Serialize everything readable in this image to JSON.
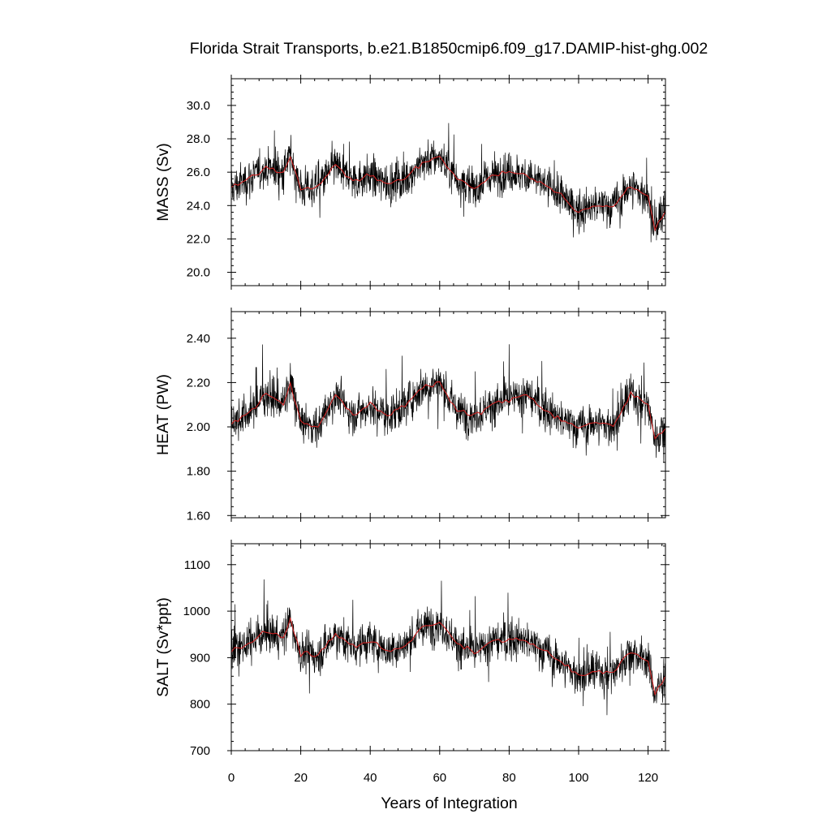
{
  "title": "Florida Strait Transports, b.e21.B1850cmip6.f09_g17.DAMIP-hist-ghg.002",
  "chart_data": [
    {
      "type": "line",
      "ylabel": "MASS (Sv)",
      "xlabel": "",
      "xlim": [
        0,
        125
      ],
      "ylim": [
        19.2,
        31.6
      ],
      "yticks": [
        20.0,
        22.0,
        24.0,
        26.0,
        28.0,
        30.0
      ],
      "ytick_labels": [
        "20.0",
        "22.0",
        "24.0",
        "26.0",
        "28.0",
        "30.0"
      ],
      "xticks": [
        0,
        20,
        40,
        60,
        80,
        100,
        120
      ],
      "grid": false,
      "series": [
        {
          "color": "#000000",
          "resolution": "monthly",
          "x": [
            0,
            5,
            10,
            15,
            17,
            20,
            25,
            30,
            35,
            40,
            45,
            50,
            55,
            60,
            65,
            70,
            75,
            80,
            85,
            90,
            95,
            100,
            105,
            110,
            115,
            120,
            122,
            125
          ],
          "y": [
            25.0,
            25.6,
            26.3,
            26.0,
            27.0,
            25.0,
            25.2,
            26.4,
            25.5,
            25.8,
            25.3,
            25.6,
            26.6,
            26.9,
            25.6,
            25.0,
            25.8,
            26.0,
            25.8,
            25.3,
            24.6,
            23.6,
            24.0,
            24.0,
            25.2,
            24.5,
            22.5,
            23.8
          ]
        },
        {
          "color": "#cc2222",
          "resolution": "annual mean",
          "x": [
            0,
            5,
            10,
            15,
            17,
            20,
            25,
            30,
            35,
            40,
            45,
            50,
            55,
            60,
            65,
            70,
            75,
            80,
            85,
            90,
            95,
            100,
            105,
            110,
            115,
            120,
            122,
            125
          ],
          "y": [
            25.0,
            25.6,
            26.3,
            26.0,
            27.0,
            25.0,
            25.2,
            26.4,
            25.5,
            25.8,
            25.3,
            25.6,
            26.6,
            26.9,
            25.6,
            25.0,
            25.8,
            26.0,
            25.8,
            25.3,
            24.6,
            23.6,
            24.0,
            24.0,
            25.2,
            24.5,
            22.5,
            23.8
          ]
        }
      ]
    },
    {
      "type": "line",
      "ylabel": "HEAT (PW)",
      "xlabel": "",
      "xlim": [
        0,
        125
      ],
      "ylim": [
        1.59,
        2.52
      ],
      "yticks": [
        1.6,
        1.8,
        2.0,
        2.2,
        2.4
      ],
      "ytick_labels": [
        "1.60",
        "1.80",
        "2.00",
        "2.20",
        "2.40"
      ],
      "xticks": [
        0,
        20,
        40,
        60,
        80,
        100,
        120
      ],
      "grid": false,
      "series": [
        {
          "color": "#000000",
          "resolution": "monthly",
          "x": [
            0,
            5,
            10,
            15,
            17,
            20,
            25,
            30,
            35,
            40,
            45,
            50,
            55,
            60,
            65,
            70,
            75,
            80,
            85,
            90,
            95,
            100,
            105,
            110,
            115,
            120,
            122,
            125
          ],
          "y": [
            2.02,
            2.06,
            2.15,
            2.1,
            2.2,
            2.02,
            2.0,
            2.15,
            2.05,
            2.1,
            2.05,
            2.1,
            2.18,
            2.2,
            2.07,
            2.05,
            2.1,
            2.12,
            2.15,
            2.08,
            2.03,
            2.0,
            2.02,
            2.0,
            2.15,
            2.1,
            1.95,
            2.0
          ]
        },
        {
          "color": "#cc2222",
          "resolution": "annual mean",
          "x": [
            0,
            5,
            10,
            15,
            17,
            20,
            25,
            30,
            35,
            40,
            45,
            50,
            55,
            60,
            65,
            70,
            75,
            80,
            85,
            90,
            95,
            100,
            105,
            110,
            115,
            120,
            122,
            125
          ],
          "y": [
            2.02,
            2.06,
            2.15,
            2.1,
            2.2,
            2.02,
            2.0,
            2.15,
            2.05,
            2.1,
            2.05,
            2.1,
            2.18,
            2.2,
            2.07,
            2.05,
            2.1,
            2.12,
            2.15,
            2.08,
            2.03,
            2.0,
            2.02,
            2.0,
            2.15,
            2.1,
            1.95,
            2.0
          ]
        }
      ]
    },
    {
      "type": "line",
      "ylabel": "SALT (Sv*ppt)",
      "xlabel": "Years of Integration",
      "xlim": [
        0,
        125
      ],
      "ylim": [
        700,
        1145
      ],
      "yticks": [
        700,
        800,
        900,
        1000,
        1100
      ],
      "ytick_labels": [
        "700",
        "800",
        "900",
        "1000",
        "1100"
      ],
      "xticks": [
        0,
        20,
        40,
        60,
        80,
        100,
        120
      ],
      "xtick_labels": [
        "0",
        "20",
        "40",
        "60",
        "80",
        "100",
        "120"
      ],
      "grid": false,
      "series": [
        {
          "color": "#000000",
          "resolution": "monthly",
          "x": [
            0,
            5,
            10,
            15,
            17,
            20,
            25,
            30,
            35,
            40,
            45,
            50,
            55,
            60,
            65,
            70,
            75,
            80,
            85,
            90,
            95,
            100,
            105,
            110,
            115,
            120,
            122,
            125
          ],
          "y": [
            915,
            930,
            955,
            945,
            980,
            910,
            905,
            950,
            925,
            935,
            915,
            925,
            965,
            975,
            930,
            910,
            935,
            940,
            935,
            915,
            890,
            860,
            870,
            870,
            915,
            890,
            820,
            860
          ]
        },
        {
          "color": "#cc2222",
          "resolution": "annual mean",
          "x": [
            0,
            5,
            10,
            15,
            17,
            20,
            25,
            30,
            35,
            40,
            45,
            50,
            55,
            60,
            65,
            70,
            75,
            80,
            85,
            90,
            95,
            100,
            105,
            110,
            115,
            120,
            122,
            125
          ],
          "y": [
            915,
            930,
            955,
            945,
            980,
            910,
            905,
            950,
            925,
            935,
            915,
            925,
            965,
            975,
            930,
            910,
            935,
            940,
            935,
            915,
            890,
            860,
            870,
            870,
            915,
            890,
            820,
            860
          ]
        }
      ]
    }
  ]
}
